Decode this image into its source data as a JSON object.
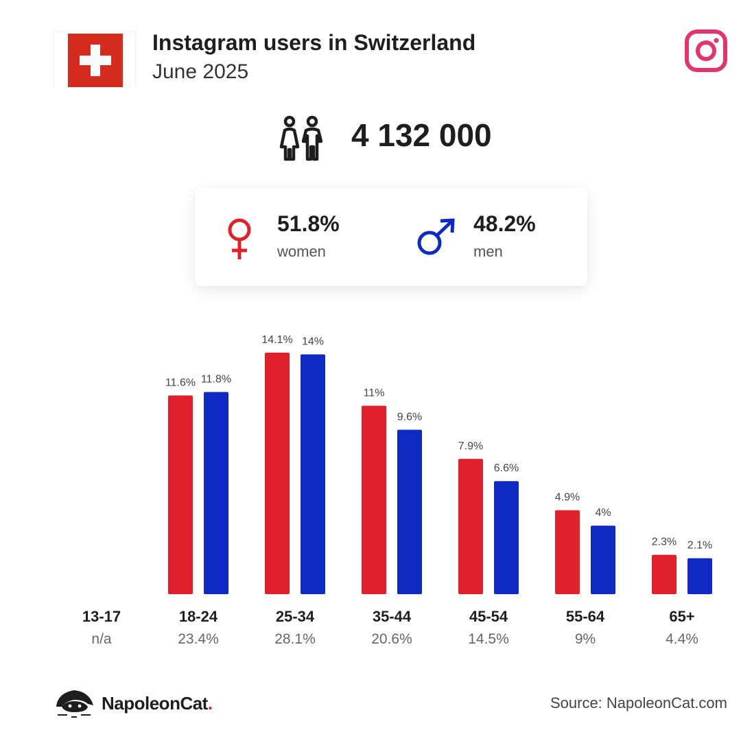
{
  "header": {
    "title": "Instagram users in Switzerland",
    "subtitle": "June 2025"
  },
  "colors": {
    "women": "#e0212b",
    "men": "#0f2ac2",
    "flag_red": "#d52b1e",
    "instagram": "#e3346d"
  },
  "icons": {
    "flag": "switzerland-flag-icon",
    "platform": "instagram-icon",
    "people": "people-icon",
    "women": "venus-icon",
    "men": "mars-icon",
    "logo": "napoleoncat-logo-icon"
  },
  "summary": {
    "total_users": "4 132 000",
    "women_pct": "51.8%",
    "women_label": "women",
    "men_pct": "48.2%",
    "men_label": "men"
  },
  "chart_data": {
    "type": "bar",
    "categories": [
      "13-17",
      "18-24",
      "25-34",
      "35-44",
      "45-54",
      "55-64",
      "65+"
    ],
    "category_totals": [
      "n/a",
      "23.4%",
      "28.1%",
      "20.6%",
      "14.5%",
      "9%",
      "4.4%"
    ],
    "series": [
      {
        "name": "women",
        "values": [
          null,
          11.6,
          14.1,
          11.0,
          7.9,
          4.9,
          2.3
        ],
        "labels": [
          "",
          "11.6%",
          "14.1%",
          "11%",
          "7.9%",
          "4.9%",
          "2.3%"
        ]
      },
      {
        "name": "men",
        "values": [
          null,
          11.8,
          14.0,
          9.6,
          6.6,
          4.0,
          2.1
        ],
        "labels": [
          "",
          "11.8%",
          "14%",
          "9.6%",
          "6.6%",
          "4%",
          "2.1%"
        ]
      }
    ],
    "unit": "%",
    "ylim": [
      0,
      14.1
    ],
    "grid": false,
    "legend": "none"
  },
  "footer": {
    "brand": "NapoleonCat",
    "brand_dot": ".",
    "source": "Source: NapoleonCat.com"
  }
}
